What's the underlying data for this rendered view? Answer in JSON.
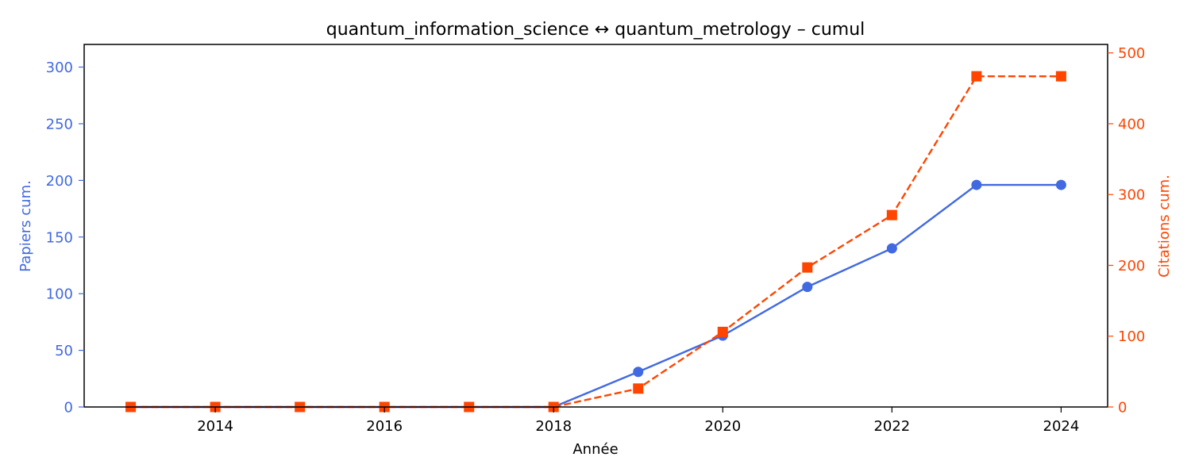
{
  "chart_data": {
    "type": "line",
    "title": "quantum_information_science  ↔  quantum_metrology  –  cumul",
    "xlabel": "Année",
    "ylabel_left": "Papiers cum.",
    "ylabel_right": "Citations cum.",
    "x": [
      2013,
      2014,
      2015,
      2016,
      2017,
      2018,
      2019,
      2020,
      2021,
      2022,
      2023,
      2024
    ],
    "xlim": [
      2012.45,
      2024.55
    ],
    "x_ticks": [
      "2014",
      "2016",
      "2018",
      "2020",
      "2022",
      "2024"
    ],
    "ylim_left": [
      0,
      320
    ],
    "y_ticks_left": [
      "0",
      "50",
      "100",
      "150",
      "200",
      "250",
      "300"
    ],
    "ylim_right": [
      0,
      512
    ],
    "y_ticks_right": [
      "0",
      "100",
      "200",
      "300",
      "400",
      "500"
    ],
    "grid": false,
    "series": [
      {
        "name": "",
        "axis": "left",
        "color": "#4169e1",
        "marker": "circle",
        "line_style": "solid",
        "values": [
          0,
          0,
          0,
          0,
          0,
          0,
          31,
          63,
          106,
          140,
          196,
          196
        ]
      },
      {
        "name": "",
        "axis": "right",
        "color": "#ff4500",
        "marker": "square",
        "line_style": "dashed",
        "values": [
          0,
          0,
          0,
          0,
          0,
          0,
          26,
          106,
          197,
          271,
          467,
          467
        ]
      }
    ]
  }
}
